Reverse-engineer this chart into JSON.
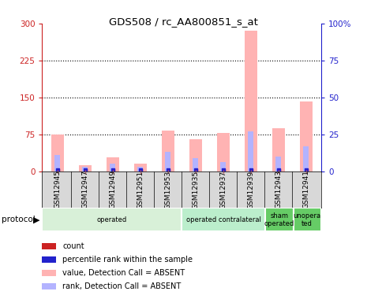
{
  "title": "GDS508 / rc_AA800851_s_at",
  "samples": [
    "GSM12945",
    "GSM12947",
    "GSM12949",
    "GSM12951",
    "GSM12953",
    "GSM12935",
    "GSM12937",
    "GSM12939",
    "GSM12943",
    "GSM12941"
  ],
  "values_absent": [
    75,
    12,
    28,
    15,
    82,
    65,
    78,
    285,
    88,
    142
  ],
  "rank_absent_pct": [
    11,
    3,
    5,
    3,
    13,
    9,
    6,
    27,
    10,
    17
  ],
  "left_ylim": [
    0,
    300
  ],
  "right_ylim": [
    0,
    100
  ],
  "left_yticks": [
    0,
    75,
    150,
    225,
    300
  ],
  "right_yticks": [
    0,
    25,
    50,
    75,
    100
  ],
  "left_yticklabels": [
    "0",
    "75",
    "150",
    "225",
    "300"
  ],
  "right_yticklabels": [
    "0",
    "25",
    "50",
    "75",
    "100%"
  ],
  "protocol_groups": [
    {
      "label": "operated",
      "start": 0,
      "end": 5,
      "color": "#d8f0d8"
    },
    {
      "label": "operated contralateral",
      "start": 5,
      "end": 8,
      "color": "#bbeecc"
    },
    {
      "label": "sham\noperated",
      "start": 8,
      "end": 9,
      "color": "#66cc66"
    },
    {
      "label": "unopera\nted",
      "start": 9,
      "end": 10,
      "color": "#66cc66"
    }
  ],
  "legend_items": [
    {
      "color": "#cc2222",
      "label": "count"
    },
    {
      "color": "#2222cc",
      "label": "percentile rank within the sample"
    },
    {
      "color": "#ffb3b3",
      "label": "value, Detection Call = ABSENT"
    },
    {
      "color": "#b3b3ff",
      "label": "rank, Detection Call = ABSENT"
    }
  ],
  "left_axis_color": "#cc2222",
  "right_axis_color": "#2222cc",
  "gridline_ticks": [
    75,
    150,
    225
  ]
}
